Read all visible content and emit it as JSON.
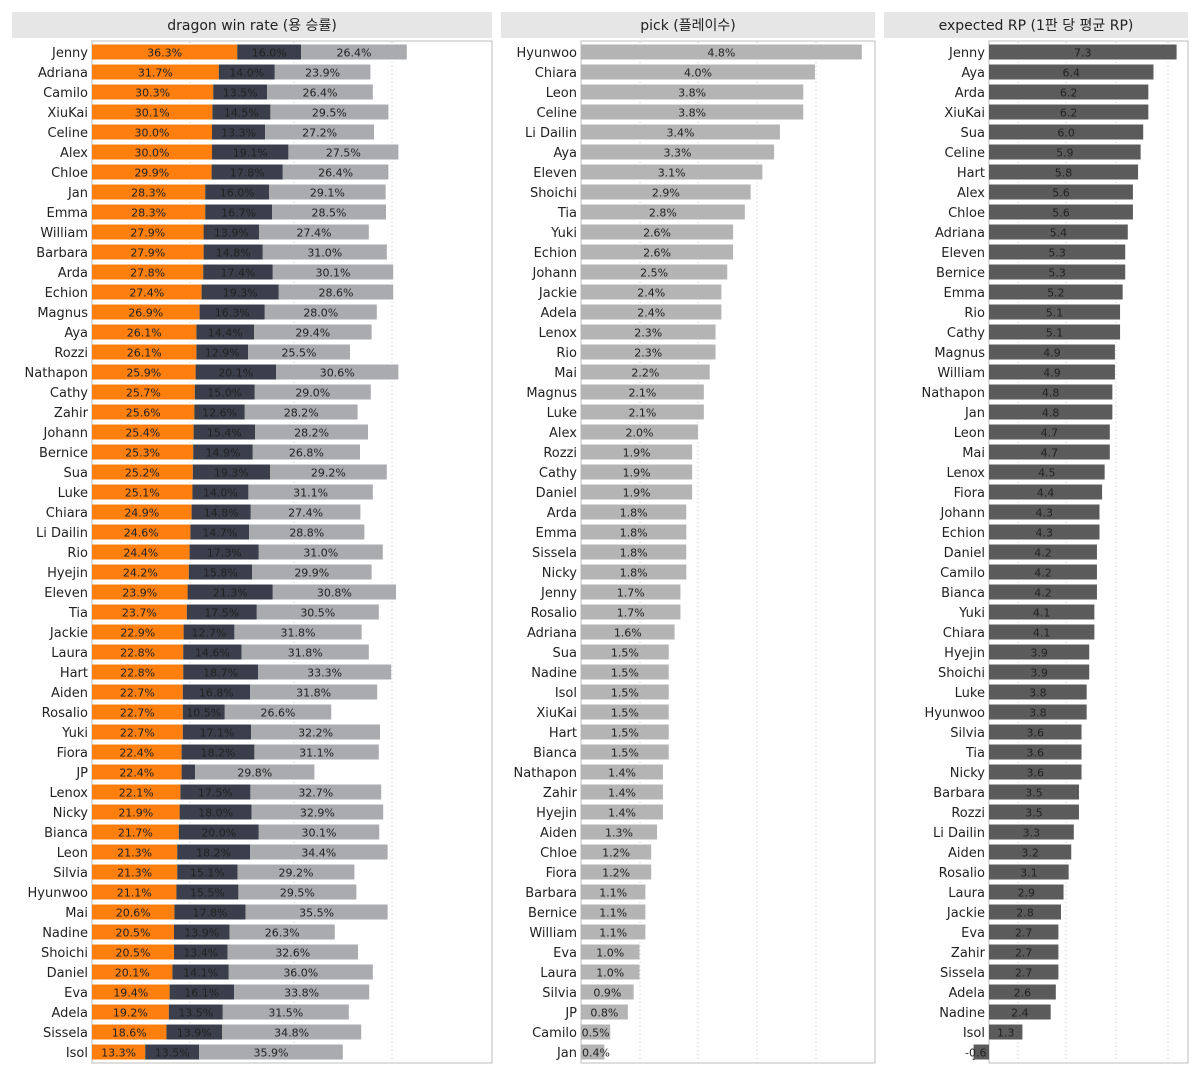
{
  "chart_data": [
    {
      "type": "bar",
      "stacked": true,
      "title": "dragon win rate (용 승률)",
      "categories": [
        "Jenny",
        "Adriana",
        "Camilo",
        "XiuKai",
        "Celine",
        "Alex",
        "Chloe",
        "Jan",
        "Emma",
        "William",
        "Barbara",
        "Arda",
        "Echion",
        "Magnus",
        "Aya",
        "Rozzi",
        "Nathapon",
        "Cathy",
        "Zahir",
        "Johann",
        "Bernice",
        "Sua",
        "Luke",
        "Chiara",
        "Li Dailin",
        "Rio",
        "Hyejin",
        "Eleven",
        "Tia",
        "Jackie",
        "Laura",
        "Hart",
        "Aiden",
        "Rosalio",
        "Yuki",
        "Fiora",
        "JP",
        "Lenox",
        "Nicky",
        "Bianca",
        "Leon",
        "Silvia",
        "Hyunwoo",
        "Mai",
        "Nadine",
        "Shoichi",
        "Daniel",
        "Eva",
        "Adela",
        "Sissela",
        "Isol"
      ],
      "series": [
        {
          "values": [
            36.3,
            31.7,
            30.3,
            30.1,
            30.0,
            30.0,
            29.9,
            28.3,
            28.3,
            27.9,
            27.9,
            27.8,
            27.4,
            26.9,
            26.1,
            26.1,
            25.9,
            25.7,
            25.6,
            25.4,
            25.3,
            25.2,
            25.1,
            24.9,
            24.6,
            24.4,
            24.2,
            23.9,
            23.7,
            22.9,
            22.8,
            22.8,
            22.7,
            22.7,
            22.7,
            22.4,
            22.4,
            22.1,
            21.9,
            21.7,
            21.3,
            21.3,
            21.1,
            20.6,
            20.5,
            20.5,
            20.1,
            19.4,
            19.2,
            18.6,
            13.3
          ],
          "color": "#ff7f0e"
        },
        {
          "values": [
            16.0,
            14.0,
            13.5,
            14.5,
            13.3,
            19.1,
            17.8,
            16.0,
            16.7,
            13.9,
            14.8,
            17.4,
            19.3,
            16.3,
            14.4,
            12.9,
            20.1,
            15.0,
            12.6,
            15.4,
            14.9,
            19.3,
            14.0,
            14.8,
            14.7,
            17.3,
            15.8,
            21.3,
            17.5,
            12.7,
            14.6,
            18.7,
            16.8,
            10.5,
            17.1,
            18.2,
            null,
            17.5,
            18.0,
            20.0,
            18.2,
            15.1,
            15.5,
            17.8,
            13.9,
            13.4,
            14.1,
            16.1,
            13.5,
            13.9,
            13.5
          ],
          "color": "#3a3f4b"
        },
        {
          "values": [
            26.4,
            23.9,
            26.4,
            29.5,
            27.2,
            27.5,
            26.4,
            29.1,
            28.5,
            27.4,
            31.0,
            30.1,
            28.6,
            28.0,
            29.4,
            25.5,
            30.6,
            29.0,
            28.2,
            28.2,
            26.8,
            29.2,
            31.1,
            27.4,
            28.8,
            31.0,
            29.9,
            30.8,
            30.5,
            31.8,
            31.8,
            33.3,
            31.8,
            26.6,
            32.2,
            31.1,
            29.8,
            32.7,
            32.9,
            30.1,
            34.4,
            29.2,
            29.5,
            35.5,
            26.3,
            32.6,
            36.0,
            33.8,
            31.5,
            34.8,
            35.9
          ],
          "color": "#a9abae"
        }
      ],
      "jp_middle_unlabeled": 3.4
    },
    {
      "type": "bar",
      "title": "pick (플레이수)",
      "categories": [
        "Hyunwoo",
        "Chiara",
        "Leon",
        "Celine",
        "Li Dailin",
        "Aya",
        "Eleven",
        "Shoichi",
        "Tia",
        "Yuki",
        "Echion",
        "Johann",
        "Jackie",
        "Adela",
        "Lenox",
        "Rio",
        "Mai",
        "Magnus",
        "Luke",
        "Alex",
        "Rozzi",
        "Cathy",
        "Daniel",
        "Arda",
        "Emma",
        "Sissela",
        "Nicky",
        "Jenny",
        "Rosalio",
        "Adriana",
        "Sua",
        "Nadine",
        "Isol",
        "XiuKai",
        "Hart",
        "Bianca",
        "Nathapon",
        "Zahir",
        "Hyejin",
        "Aiden",
        "Chloe",
        "Fiora",
        "Barbara",
        "Bernice",
        "William",
        "Eva",
        "Laura",
        "Silvia",
        "JP",
        "Camilo",
        "Jan"
      ],
      "values": [
        4.8,
        4.0,
        3.8,
        3.8,
        3.4,
        3.3,
        3.1,
        2.9,
        2.8,
        2.6,
        2.6,
        2.5,
        2.4,
        2.4,
        2.3,
        2.3,
        2.2,
        2.1,
        2.1,
        2.0,
        1.9,
        1.9,
        1.9,
        1.8,
        1.8,
        1.8,
        1.8,
        1.7,
        1.7,
        1.6,
        1.5,
        1.5,
        1.5,
        1.5,
        1.5,
        1.5,
        1.4,
        1.4,
        1.4,
        1.3,
        1.2,
        1.2,
        1.1,
        1.1,
        1.1,
        1.0,
        1.0,
        0.9,
        0.8,
        0.5,
        0.4
      ],
      "color": "#b4b4b4"
    },
    {
      "type": "bar",
      "title": "expected RP (1판 당 평균 RP)",
      "categories": [
        "Jenny",
        "Aya",
        "Arda",
        "XiuKai",
        "Sua",
        "Celine",
        "Hart",
        "Alex",
        "Chloe",
        "Adriana",
        "Eleven",
        "Bernice",
        "Emma",
        "Rio",
        "Cathy",
        "Magnus",
        "William",
        "Nathapon",
        "Jan",
        "Leon",
        "Mai",
        "Lenox",
        "Fiora",
        "Johann",
        "Echion",
        "Daniel",
        "Camilo",
        "Bianca",
        "Yuki",
        "Chiara",
        "Hyejin",
        "Shoichi",
        "Luke",
        "Hyunwoo",
        "Silvia",
        "Tia",
        "Nicky",
        "Barbara",
        "Rozzi",
        "Li Dailin",
        "Aiden",
        "Rosalio",
        "Laura",
        "Jackie",
        "Eva",
        "Zahir",
        "Sissela",
        "Adela",
        "Nadine",
        "Isol",
        "JP"
      ],
      "values": [
        7.3,
        6.4,
        6.2,
        6.2,
        6.0,
        5.9,
        5.8,
        5.6,
        5.6,
        5.4,
        5.3,
        5.3,
        5.2,
        5.1,
        5.1,
        4.9,
        4.9,
        4.8,
        4.8,
        4.7,
        4.7,
        4.5,
        4.4,
        4.3,
        4.3,
        4.2,
        4.2,
        4.2,
        4.1,
        4.1,
        3.9,
        3.9,
        3.8,
        3.8,
        3.6,
        3.6,
        3.6,
        3.5,
        3.5,
        3.3,
        3.2,
        3.1,
        2.9,
        2.8,
        2.7,
        2.7,
        2.7,
        2.6,
        2.4,
        1.3,
        -0.6
      ],
      "color": "#5b5b5b"
    }
  ]
}
